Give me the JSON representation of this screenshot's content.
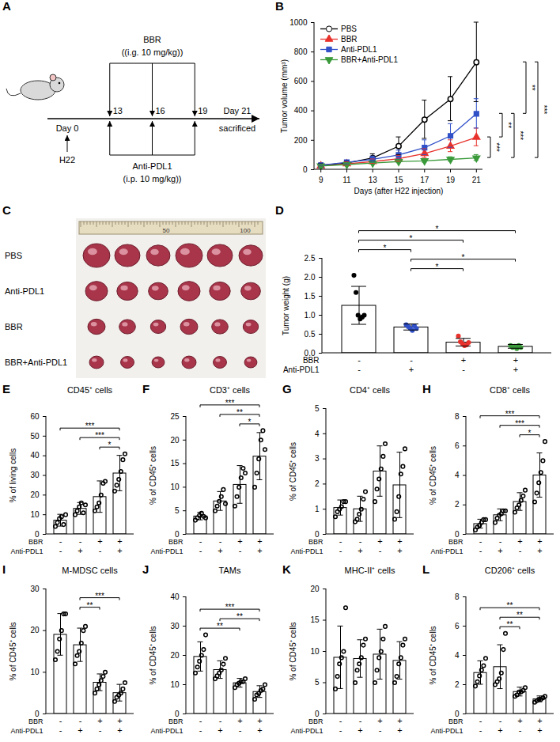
{
  "schematic": {
    "panel": "A",
    "treatment1": {
      "label": "BBR",
      "dose": "((i.g. 10 mg/kg))",
      "days": [
        13,
        16,
        19
      ]
    },
    "treatment2": {
      "label": "Anti-PDL1",
      "dose": "(i.p. 10 mg/kg))",
      "days": [
        13,
        16,
        19
      ]
    },
    "start": "Day 0",
    "start_day": 0,
    "end": "Day 21",
    "end_day": 21,
    "inoculation": "H22",
    "endpoint": "sacrificed"
  },
  "photo": {
    "panel": "C",
    "rows": [
      "PBS",
      "Anti-PDL1",
      "BBR",
      "BBR+Anti-PDL1"
    ],
    "ruler_labels": [
      "50",
      "100"
    ]
  },
  "chart_data": [
    {
      "panel": "B",
      "type": "line",
      "x": [
        9,
        11,
        13,
        15,
        17,
        19,
        21
      ],
      "xlim": [
        8.5,
        21.5
      ],
      "xticks": [
        9,
        11,
        13,
        15,
        17,
        19,
        21
      ],
      "ylim": [
        0,
        1000
      ],
      "yticks": [
        0,
        200,
        400,
        600,
        800,
        1000
      ],
      "x_label": "Days (after H22 injection)",
      "y_label": "Tumor volume (mm³)",
      "legend": "top-left",
      "series": [
        {
          "name": "PBS",
          "color": "#000000",
          "marker": "open-circle",
          "values": [
            30,
            45,
            80,
            160,
            340,
            480,
            730
          ],
          "errors": [
            10,
            15,
            25,
            60,
            130,
            150,
            270
          ]
        },
        {
          "name": "BBR",
          "color": "#e8322c",
          "marker": "triangle",
          "values": [
            25,
            40,
            55,
            75,
            110,
            160,
            220
          ],
          "errors": [
            5,
            10,
            15,
            20,
            30,
            40,
            60
          ]
        },
        {
          "name": "Anti-PDL1",
          "color": "#3050c8",
          "marker": "square",
          "values": [
            30,
            50,
            70,
            100,
            150,
            230,
            380
          ],
          "errors": [
            8,
            12,
            20,
            30,
            50,
            80,
            100
          ]
        },
        {
          "name": "BBR+Anti-PDL1",
          "color": "#3a9a3a",
          "marker": "triangle-down",
          "values": [
            25,
            35,
            45,
            55,
            60,
            70,
            80
          ],
          "errors": [
            5,
            8,
            10,
            10,
            12,
            15,
            20
          ]
        }
      ],
      "significance": [
        {
          "from": "BBR",
          "to": "BBR+Anti-PDL1",
          "label": "***"
        },
        {
          "from": "Anti-PDL1",
          "to": "BBR",
          "label": "**"
        },
        {
          "from": "Anti-PDL1",
          "to": "BBR+Anti-PDL1",
          "label": "***"
        },
        {
          "from": "PBS",
          "to": "Anti-PDL1",
          "label": "**"
        },
        {
          "from": "PBS",
          "to": "BBR+Anti-PDL1",
          "label": "***"
        }
      ]
    },
    {
      "panel": "D",
      "type": "bar",
      "y_label": "Tumor weight (g)",
      "ylim": [
        0,
        2.5
      ],
      "yticks": [
        {
          "value": 0,
          "label": "0.0"
        },
        {
          "value": 0.5,
          "label": "0.5"
        },
        {
          "value": 1,
          "label": "1.0"
        },
        {
          "value": 1.5,
          "label": "1.5"
        },
        {
          "value": 2,
          "label": "2.0"
        },
        {
          "value": 2.5,
          "label": "2.5"
        }
      ],
      "factors": [
        {
          "label": "BBR",
          "signs": [
            "-",
            "-",
            "+",
            "+"
          ]
        },
        {
          "label": "Anti-PDL1",
          "signs": [
            "-",
            "+",
            "-",
            "+"
          ]
        }
      ],
      "values": [
        1.25,
        0.68,
        0.28,
        0.17
      ],
      "errors": [
        0.5,
        0.08,
        0.1,
        0.05
      ],
      "points": [
        [
          2.05,
          1.6,
          1.0,
          0.9,
          0.95,
          1.0
        ],
        [
          0.75,
          0.7,
          0.65,
          0.6,
          0.72,
          0.65
        ],
        [
          0.45,
          0.3,
          0.25,
          0.2,
          0.22,
          0.28
        ],
        [
          0.2,
          0.15,
          0.18,
          0.12,
          0.2,
          0.15
        ]
      ],
      "colors": [
        "#000000",
        "#3050c8",
        "#e8322c",
        "#3a9a3a"
      ],
      "marker": "circle",
      "significance": [
        {
          "from": 1,
          "to": 2,
          "label": "*"
        },
        {
          "from": 1,
          "to": 3,
          "label": "*"
        },
        {
          "from": 0,
          "to": 1,
          "label": "*"
        },
        {
          "from": 0,
          "to": 2,
          "label": "*"
        },
        {
          "from": 0,
          "to": 3,
          "label": "*"
        }
      ]
    },
    {
      "panel": "E",
      "type": "bar",
      "title": "CD45⁺ cells",
      "y_label": "% of living cells",
      "ylim": [
        0,
        60
      ],
      "yticks": [
        0,
        10,
        20,
        30,
        40,
        50,
        60
      ],
      "factors": [
        {
          "label": "BBR",
          "signs": [
            "-",
            "-",
            "+",
            "+"
          ]
        },
        {
          "label": "Anti-PDL1",
          "signs": [
            "-",
            "+",
            "-",
            "+"
          ]
        }
      ],
      "values": [
        7,
        13,
        19,
        31
      ],
      "errors": [
        3,
        3,
        8,
        9
      ],
      "points": [
        [
          4,
          6,
          8,
          9,
          5,
          10
        ],
        [
          10,
          12,
          14,
          16,
          11,
          15
        ],
        [
          12,
          14,
          16,
          20,
          26,
          27
        ],
        [
          22,
          25,
          28,
          32,
          38,
          41
        ]
      ],
      "color": "#000000",
      "marker": "open-circle",
      "significance": [
        {
          "from": 2,
          "to": 3,
          "label": "*"
        },
        {
          "from": 1,
          "to": 3,
          "label": "***"
        },
        {
          "from": 0,
          "to": 3,
          "label": "***"
        }
      ]
    },
    {
      "panel": "F",
      "type": "bar",
      "title": "CD3⁺ cells",
      "y_label": "% of CD45⁺ cells",
      "ylim": [
        0,
        25
      ],
      "yticks": [
        0,
        5,
        10,
        15,
        20,
        25
      ],
      "factors": [
        {
          "label": "BBR",
          "signs": [
            "-",
            "-",
            "+",
            "+"
          ]
        },
        {
          "label": "Anti-PDL1",
          "signs": [
            "-",
            "+",
            "-",
            "+"
          ]
        }
      ],
      "values": [
        3.8,
        7,
        10.5,
        16.5
      ],
      "errors": [
        0.8,
        2,
        4,
        5
      ],
      "points": [
        [
          3,
          3.5,
          4,
          4.5,
          3.8,
          3.5
        ],
        [
          5,
          6,
          7,
          8,
          9.5,
          6.5
        ],
        [
          6,
          8,
          10,
          12,
          14,
          13
        ],
        [
          10,
          13,
          16,
          20,
          22,
          18
        ]
      ],
      "color": "#000000",
      "marker": "open-circle",
      "significance": [
        {
          "from": 2,
          "to": 3,
          "label": "*"
        },
        {
          "from": 1,
          "to": 3,
          "label": "**"
        },
        {
          "from": 0,
          "to": 3,
          "label": "***"
        }
      ]
    },
    {
      "panel": "G",
      "type": "bar",
      "title": "CD4⁺ cells",
      "y_label": "% of CD45⁺ cells",
      "ylim": [
        0,
        5
      ],
      "yticks": [
        0,
        1,
        2,
        3,
        4,
        5
      ],
      "factors": [
        {
          "label": "BBR",
          "signs": [
            "-",
            "-",
            "+",
            "+"
          ]
        },
        {
          "label": "Anti-PDL1",
          "signs": [
            "-",
            "+",
            "-",
            "+"
          ]
        }
      ],
      "values": [
        1.05,
        1.0,
        2.5,
        1.95
      ],
      "errors": [
        0.3,
        0.5,
        1.0,
        1.3
      ],
      "points": [
        [
          0.7,
          0.9,
          1.0,
          1.1,
          1.3,
          1.3
        ],
        [
          0.5,
          0.6,
          0.8,
          1.0,
          1.4,
          1.7
        ],
        [
          1.3,
          1.8,
          2.2,
          2.6,
          3.1,
          3.6
        ],
        [
          0.6,
          0.9,
          1.5,
          2.4,
          2.7,
          3.4
        ]
      ],
      "color": "#000000",
      "marker": "open-circle",
      "significance": []
    },
    {
      "panel": "H",
      "type": "bar",
      "title": "CD8⁺ cells",
      "y_label": "% of CD45⁺ cells",
      "ylim": [
        0,
        8
      ],
      "yticks": [
        0,
        2,
        4,
        6,
        8
      ],
      "factors": [
        {
          "label": "BBR",
          "signs": [
            "-",
            "-",
            "+",
            "+"
          ]
        },
        {
          "label": "Anti-PDL1",
          "signs": [
            "-",
            "+",
            "-",
            "+"
          ]
        }
      ],
      "values": [
        0.7,
        1.3,
        2.2,
        4.0
      ],
      "errors": [
        0.3,
        0.4,
        0.6,
        1.5
      ],
      "points": [
        [
          0.3,
          0.5,
          0.6,
          0.8,
          1.0,
          1.0
        ],
        [
          0.8,
          1.1,
          1.3,
          1.4,
          1.6,
          1.6
        ],
        [
          1.5,
          1.8,
          2.0,
          2.3,
          2.6,
          3.0
        ],
        [
          2.2,
          2.8,
          3.5,
          4.2,
          5.0,
          6.3
        ]
      ],
      "color": "#000000",
      "marker": "open-circle",
      "significance": [
        {
          "from": 2,
          "to": 3,
          "label": "*"
        },
        {
          "from": 1,
          "to": 3,
          "label": "***"
        },
        {
          "from": 0,
          "to": 3,
          "label": "***"
        }
      ]
    },
    {
      "panel": "I",
      "type": "bar",
      "title": "M-MDSC cells",
      "y_label": "% of CD45⁺ cells",
      "ylim": [
        0,
        30
      ],
      "yticks": [
        0,
        10,
        20,
        30
      ],
      "factors": [
        {
          "label": "BBR",
          "signs": [
            "-",
            "-",
            "+",
            "+"
          ]
        },
        {
          "label": "Anti-PDL1",
          "signs": [
            "-",
            "+",
            "-",
            "+"
          ]
        }
      ],
      "values": [
        19,
        16.5,
        7.5,
        5
      ],
      "errors": [
        5,
        4,
        2,
        2
      ],
      "points": [
        [
          13,
          15,
          18,
          20,
          24,
          24
        ],
        [
          12,
          14,
          15,
          17,
          20,
          21
        ],
        [
          5,
          6,
          7,
          8,
          9,
          10
        ],
        [
          3,
          4,
          4.5,
          5,
          6,
          7.5
        ]
      ],
      "color": "#000000",
      "marker": "open-circle",
      "significance": [
        {
          "from": 1,
          "to": 2,
          "label": "**"
        },
        {
          "from": 1,
          "to": 3,
          "label": "***"
        }
      ]
    },
    {
      "panel": "J",
      "type": "bar",
      "title": "TAMs",
      "y_label": "% of CD45⁺ cells",
      "ylim": [
        0,
        40
      ],
      "yticks": [
        0,
        10,
        20,
        30,
        40
      ],
      "factors": [
        {
          "label": "BBR",
          "signs": [
            "-",
            "-",
            "+",
            "+"
          ]
        },
        {
          "label": "Anti-PDL1",
          "signs": [
            "-",
            "+",
            "-",
            "+"
          ]
        }
      ],
      "values": [
        19.5,
        15,
        10.5,
        7.5
      ],
      "errors": [
        5,
        3,
        1.5,
        2
      ],
      "points": [
        [
          14,
          16,
          18,
          20,
          22,
          27
        ],
        [
          12,
          13,
          14,
          15,
          17,
          19
        ],
        [
          9,
          10,
          10.5,
          11,
          11,
          12
        ],
        [
          5,
          6.5,
          7,
          8,
          8.5,
          10
        ]
      ],
      "color": "#000000",
      "marker": "open-circle",
      "significance": [
        {
          "from": 0,
          "to": 2,
          "label": "**"
        },
        {
          "from": 1,
          "to": 3,
          "label": "**"
        },
        {
          "from": 0,
          "to": 3,
          "label": "***"
        }
      ]
    },
    {
      "panel": "K",
      "type": "bar",
      "title": "MHC-II⁺ cells",
      "y_label": "% of CD45⁺ cells",
      "ylim": [
        0,
        20
      ],
      "yticks": [
        0,
        5,
        10,
        15,
        20
      ],
      "factors": [
        {
          "label": "BBR",
          "signs": [
            "-",
            "-",
            "+",
            "+"
          ]
        },
        {
          "label": "Anti-PDL1",
          "signs": [
            "-",
            "+",
            "-",
            "+"
          ]
        }
      ],
      "values": [
        9,
        8.8,
        9.5,
        8.5
      ],
      "errors": [
        5,
        3,
        4,
        3
      ],
      "points": [
        [
          4,
          6,
          8,
          9,
          10,
          17
        ],
        [
          5,
          7,
          8,
          9,
          11,
          12
        ],
        [
          5,
          7,
          9,
          10,
          12,
          14
        ],
        [
          5,
          6,
          8,
          9,
          11,
          12
        ]
      ],
      "color": "#000000",
      "marker": "open-circle",
      "significance": []
    },
    {
      "panel": "L",
      "type": "bar",
      "title": "CD206⁺ cells",
      "y_label": "% of CD45⁺ cells",
      "ylim": [
        0,
        8
      ],
      "yticks": [
        0,
        2,
        4,
        6,
        8
      ],
      "factors": [
        {
          "label": "BBR",
          "signs": [
            "-",
            "-",
            "+",
            "+"
          ]
        },
        {
          "label": "Anti-PDL1",
          "signs": [
            "-",
            "+",
            "-",
            "+"
          ]
        }
      ],
      "values": [
        2.8,
        3.2,
        1.5,
        1.0
      ],
      "errors": [
        0.8,
        1.5,
        0.3,
        0.2
      ],
      "points": [
        [
          1.9,
          2.2,
          2.6,
          3,
          3.3,
          3.8
        ],
        [
          2,
          2.2,
          2.4,
          2.8,
          4.4,
          5.5
        ],
        [
          1.2,
          1.3,
          1.5,
          1.5,
          1.6,
          1.8
        ],
        [
          0.8,
          0.9,
          1,
          1,
          1.1,
          1.2
        ]
      ],
      "color": "#000000",
      "marker": "open-circle",
      "significance": [
        {
          "from": 1,
          "to": 2,
          "label": "**"
        },
        {
          "from": 1,
          "to": 3,
          "label": "**"
        },
        {
          "from": 0,
          "to": 3,
          "label": "**"
        }
      ]
    }
  ]
}
